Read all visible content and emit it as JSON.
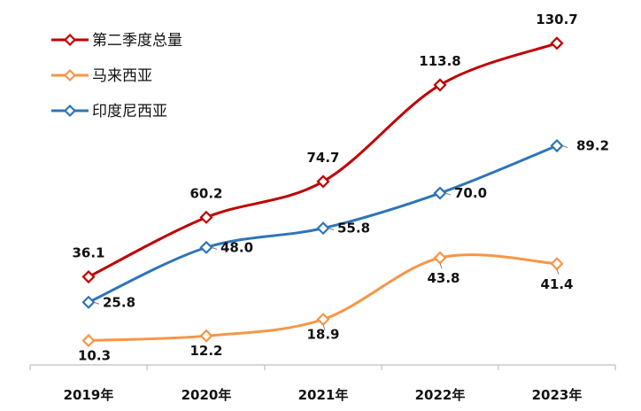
{
  "chart_data": {
    "type": "line",
    "categories": [
      "2019年",
      "2020年",
      "2021年",
      "2022年",
      "2023年"
    ],
    "series": [
      {
        "name": "第二季度总量",
        "values": [
          36.1,
          60.2,
          74.7,
          113.8,
          130.7
        ],
        "color": "#C00000"
      },
      {
        "name": "马来西亚",
        "values": [
          10.3,
          12.2,
          18.9,
          43.8,
          41.4
        ],
        "color": "#F79646"
      },
      {
        "name": "印度尼西亚",
        "values": [
          25.8,
          48.0,
          55.8,
          70.0,
          89.2
        ],
        "color": "#2E75B6"
      }
    ],
    "labels": [
      [
        "36.1",
        "60.2",
        "74.7",
        "113.8",
        "130.7"
      ],
      [
        "10.3",
        "12.2",
        "18.9",
        "43.8",
        "41.4"
      ],
      [
        "25.8",
        "48.0",
        "55.8",
        "70.0",
        "89.2"
      ]
    ],
    "ylim": [
      0,
      140
    ],
    "legend_position": "top-left",
    "grid": false,
    "smooth": true,
    "marker": "diamond"
  }
}
